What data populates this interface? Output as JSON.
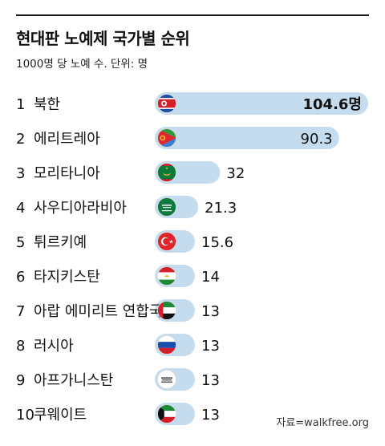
{
  "title": "현대판 노예제 국가별 순위",
  "subtitle": "1000명 당 노예 수. 단위: 명",
  "source": "자료=walkfree.org",
  "colors": {
    "bar": "#c5dcef",
    "text": "#111111",
    "rule": "#1a1a1a"
  },
  "chart_data": {
    "type": "bar",
    "orientation": "horizontal",
    "title": "현대판 노예제 국가별 순위",
    "subtitle": "1000명 당 노예 수. 단위: 명",
    "categories": [
      "북한",
      "에리트레아",
      "모리타니아",
      "사우디아라비아",
      "튀르키예",
      "타지키스탄",
      "아랍 에미리트 연합국",
      "러시아",
      "아프가니스탄",
      "쿠웨이트"
    ],
    "ranks": [
      "1",
      "2",
      "3",
      "4",
      "5",
      "6",
      "7",
      "8",
      "9",
      "10"
    ],
    "values": [
      104.6,
      90.3,
      32,
      21.3,
      15.6,
      14,
      13,
      13,
      13,
      13
    ],
    "value_labels": [
      "104.6명",
      "90.3",
      "32",
      "21.3",
      "15.6",
      "14",
      "13",
      "13",
      "13",
      "13"
    ],
    "flag_icons": [
      "north-korea-flag-icon",
      "eritrea-flag-icon",
      "mauritania-flag-icon",
      "saudi-arabia-flag-icon",
      "turkiye-flag-icon",
      "tajikistan-flag-icon",
      "uae-flag-icon",
      "russia-flag-icon",
      "afghanistan-flag-icon",
      "kuwait-flag-icon"
    ],
    "xlim": [
      0,
      104.6
    ],
    "grid": false,
    "legend": "none"
  }
}
